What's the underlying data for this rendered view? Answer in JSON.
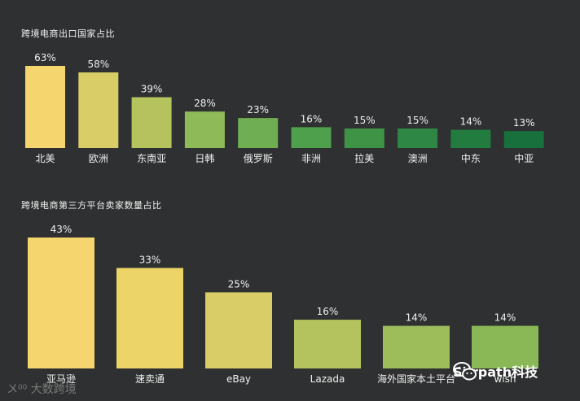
{
  "chart_data": [
    {
      "type": "bar",
      "title": "跨境电商出口国家占比",
      "categories": [
        "北美",
        "欧洲",
        "东南亚",
        "日韩",
        "俄罗斯",
        "非洲",
        "拉美",
        "澳洲",
        "中东",
        "中亚"
      ],
      "values": [
        63,
        58,
        39,
        28,
        23,
        16,
        15,
        15,
        14,
        13
      ],
      "value_labels": [
        "63%",
        "58%",
        "39%",
        "28%",
        "23%",
        "16%",
        "15%",
        "15%",
        "14%",
        "13%"
      ],
      "colors": [
        "#f5d56d",
        "#d8cd66",
        "#b5c35e",
        "#8fba58",
        "#6fae52",
        "#4fa04c",
        "#3f9347",
        "#2e8744",
        "#227c40",
        "#18703c"
      ],
      "ylim": [
        0,
        63
      ]
    },
    {
      "type": "bar",
      "title": "跨境电商第三方平台卖家数量占比",
      "categories": [
        "亚马逊",
        "速卖通",
        "eBay",
        "Lazada",
        "海外国家本土平台",
        "wish"
      ],
      "values": [
        43,
        33,
        25,
        16,
        14,
        14
      ],
      "value_labels": [
        "43%",
        "33%",
        "25%",
        "16%",
        "14%",
        "14%"
      ],
      "colors": [
        "#f5d56d",
        "#ecd468",
        "#d8cd66",
        "#b5c35e",
        "#9dbd5a",
        "#8ab857"
      ],
      "ylim": [
        0,
        43
      ]
    }
  ],
  "watermarks": {
    "left": "大数跨境",
    "right": "Surpath科技"
  }
}
